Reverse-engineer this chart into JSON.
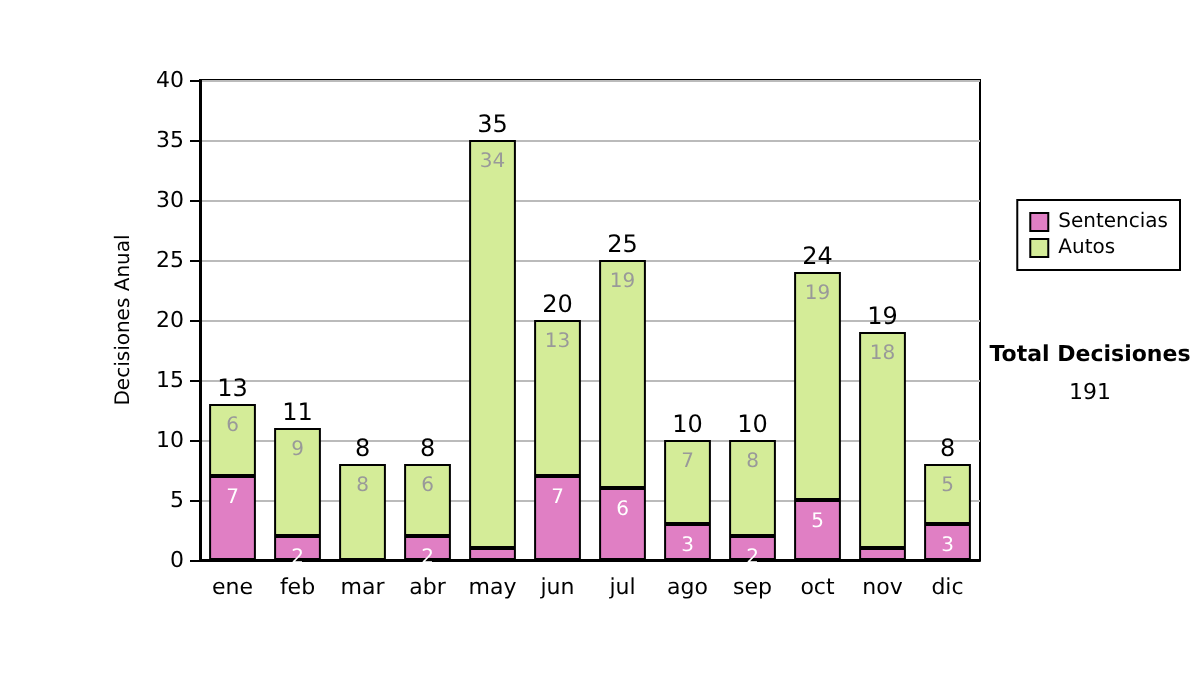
{
  "chart_data": {
    "type": "bar",
    "stacked": true,
    "ylabel": "Decisiones Anual",
    "categories": [
      "ene",
      "feb",
      "mar",
      "abr",
      "may",
      "jun",
      "jul",
      "ago",
      "sep",
      "oct",
      "nov",
      "dic"
    ],
    "series": [
      {
        "name": "Sentencias",
        "color": "#e07fc4",
        "values": [
          7,
          2,
          0,
          2,
          1,
          7,
          6,
          3,
          2,
          5,
          1,
          3
        ],
        "value_labels": [
          "7",
          "2",
          null,
          "2",
          null,
          "7",
          "6",
          "3",
          "2",
          "5",
          null,
          "3"
        ]
      },
      {
        "name": "Autos",
        "color": "#d4ec98",
        "values": [
          6,
          9,
          8,
          6,
          34,
          13,
          19,
          7,
          8,
          19,
          18,
          5
        ],
        "value_labels": [
          "6",
          "9",
          "8",
          "6",
          "34",
          "13",
          "19",
          "7",
          "8",
          "19",
          "18",
          "5"
        ]
      }
    ],
    "totals": [
      "13",
      "11",
      "8",
      "8",
      "35",
      "20",
      "25",
      "10",
      "10",
      "24",
      "19",
      "8"
    ],
    "ylim": [
      0,
      40
    ],
    "yticks": [
      0,
      5,
      10,
      15,
      20,
      25,
      30,
      35,
      40
    ],
    "grid": "y",
    "legend": "right",
    "annotations": [
      "Total Decisiones",
      "191"
    ]
  }
}
